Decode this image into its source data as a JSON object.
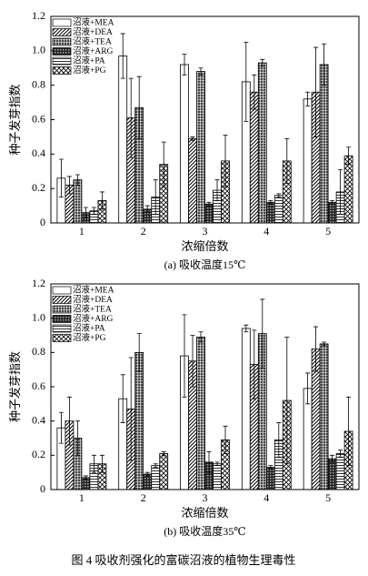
{
  "chart_data": [
    {
      "type": "bar",
      "subtitle": "(a) 吸收温度15℃",
      "x_label": "浓缩倍数",
      "y_label": "种子发芽指数",
      "categories": [
        "1",
        "2",
        "3",
        "4",
        "5"
      ],
      "ylim": [
        0,
        1.2
      ],
      "yticks": [
        0,
        0.2,
        0.4,
        0.6,
        0.8,
        {
          "value": 1,
          "label": "1.0"
        },
        1.2
      ],
      "legend": "upper left",
      "series": [
        {
          "name": "沼液+MEA",
          "color": "#000000",
          "pattern": "none",
          "values": [
            0.26,
            0.97,
            0.92,
            0.82,
            0.72
          ],
          "errors": [
            0.11,
            0.13,
            0.06,
            0.23,
            0.04
          ]
        },
        {
          "name": "沼液+DEA",
          "color": "#000000",
          "pattern": "diagonal",
          "values": [
            0.22,
            0.61,
            0.49,
            0.76,
            0.76
          ],
          "errors": [
            0.05,
            0.23,
            0.01,
            0.1,
            0.26
          ]
        },
        {
          "name": "沼液+TEA",
          "color": "#000000",
          "pattern": "grid",
          "values": [
            0.25,
            0.67,
            0.88,
            0.93,
            0.92
          ],
          "errors": [
            0.03,
            0.18,
            0.02,
            0.02,
            0.12
          ]
        },
        {
          "name": "沼液+ARG",
          "color": "#000000",
          "pattern": "checker",
          "values": [
            0.06,
            0.08,
            0.11,
            0.12,
            0.12
          ],
          "errors": [
            0.03,
            0.02,
            0.01,
            0.01,
            0.01
          ]
        },
        {
          "name": "沼液+PA",
          "color": "#000000",
          "pattern": "horizontal",
          "values": [
            0.07,
            0.15,
            0.19,
            0.16,
            0.18
          ],
          "errors": [
            0.02,
            0.1,
            0.06,
            0.01,
            0.13
          ]
        },
        {
          "name": "沼液+PG",
          "color": "#000000",
          "pattern": "cross",
          "values": [
            0.13,
            0.34,
            0.36,
            0.36,
            0.39
          ],
          "errors": [
            0.05,
            0.13,
            0.15,
            0.13,
            0.05
          ]
        }
      ]
    },
    {
      "type": "bar",
      "subtitle": "(b) 吸收温度35℃",
      "x_label": "浓缩倍数",
      "y_label": "种子发芽指数",
      "categories": [
        "1",
        "2",
        "3",
        "4",
        "5"
      ],
      "ylim": [
        0,
        1.2
      ],
      "yticks": [
        0,
        0.2,
        0.4,
        0.6,
        0.8,
        {
          "value": 1,
          "label": "1.0"
        },
        1.2
      ],
      "legend": "upper left",
      "series": [
        {
          "name": "沼液+MEA",
          "color": "#000000",
          "pattern": "none",
          "values": [
            0.36,
            0.53,
            0.78,
            0.94,
            0.59
          ],
          "errors": [
            0.09,
            0.14,
            0.24,
            0.02,
            0.09
          ]
        },
        {
          "name": "沼液+DEA",
          "color": "#000000",
          "pattern": "diagonal",
          "values": [
            0.4,
            0.47,
            0.75,
            0.73,
            0.82
          ],
          "errors": [
            0.14,
            0.3,
            0.15,
            0.2,
            0.13
          ]
        },
        {
          "name": "沼液+TEA",
          "color": "#000000",
          "pattern": "grid",
          "values": [
            0.3,
            0.8,
            0.89,
            0.91,
            0.85
          ],
          "errors": [
            0.1,
            0.11,
            0.03,
            0.2,
            0.01
          ]
        },
        {
          "name": "沼液+ARG",
          "color": "#000000",
          "pattern": "checker",
          "values": [
            0.07,
            0.09,
            0.16,
            0.13,
            0.18
          ],
          "errors": [
            0.01,
            0.01,
            0.06,
            0.01,
            0.02
          ]
        },
        {
          "name": "沼液+PA",
          "color": "#000000",
          "pattern": "horizontal",
          "values": [
            0.15,
            0.14,
            0.15,
            0.29,
            0.21
          ],
          "errors": [
            0.05,
            0.01,
            0.01,
            0.1,
            0.02
          ]
        },
        {
          "name": "沼液+PG",
          "color": "#000000",
          "pattern": "cross",
          "values": [
            0.15,
            0.21,
            0.29,
            0.52,
            0.34
          ],
          "errors": [
            0.05,
            0.01,
            0.08,
            0.37,
            0.2
          ]
        }
      ]
    }
  ],
  "caption": "图 4    吸收剂强化的富碳沼液的植物生理毒性"
}
